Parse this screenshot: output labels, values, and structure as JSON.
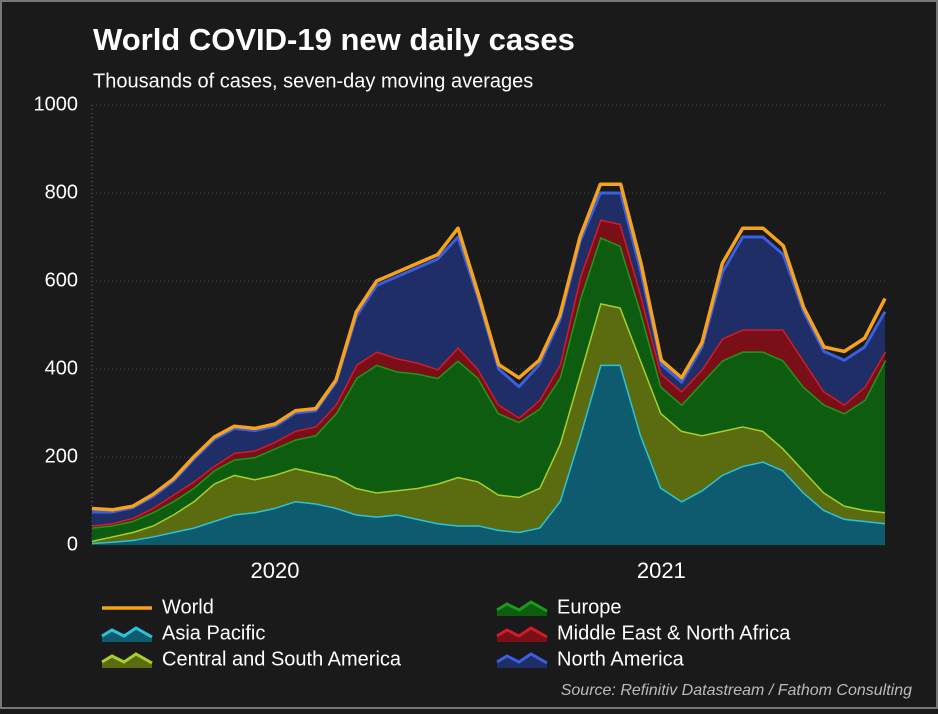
{
  "chart_data": {
    "type": "area",
    "stacked": true,
    "title": "World COVID-19 new daily cases",
    "subtitle": "Thousands of cases, seven-day moving averages",
    "source": "Source: Refinitiv Datastream / Fathom Consulting",
    "categories": [
      null,
      null,
      null,
      null,
      null,
      null,
      null,
      null,
      null,
      "2020",
      null,
      null,
      null,
      null,
      null,
      null,
      null,
      null,
      null,
      null,
      null,
      null,
      null,
      null,
      null,
      null,
      null,
      null,
      "2021",
      null,
      null,
      null,
      null,
      null,
      null,
      null,
      null,
      null,
      null,
      null
    ],
    "ylim": [
      0,
      1000
    ],
    "yticks": [
      0,
      200,
      400,
      600,
      800,
      1000
    ],
    "grid": true,
    "series": [
      {
        "name": "World",
        "type": "line",
        "color": "#f7a21b",
        "values": [
          83,
          80,
          88,
          115,
          150,
          200,
          245,
          270,
          265,
          275,
          305,
          310,
          375,
          530,
          600,
          620,
          640,
          660,
          720,
          570,
          410,
          380,
          420,
          520,
          700,
          820,
          820,
          640,
          420,
          380,
          460,
          640,
          720,
          720,
          680,
          540,
          450,
          440,
          470,
          560
        ]
      },
      {
        "name": "Asia Pacific",
        "type": "area",
        "color": "#29c4d9",
        "fill": "#0e5a6e",
        "values": [
          5,
          8,
          12,
          20,
          30,
          40,
          55,
          70,
          75,
          85,
          100,
          95,
          85,
          70,
          65,
          70,
          60,
          50,
          45,
          45,
          35,
          30,
          40,
          100,
          250,
          410,
          410,
          250,
          130,
          100,
          125,
          160,
          180,
          190,
          170,
          120,
          80,
          60,
          55,
          50
        ]
      },
      {
        "name": "Central and South America",
        "type": "area",
        "color": "#a8cf2b",
        "fill": "#5a6b10",
        "values": [
          5,
          12,
          18,
          25,
          40,
          60,
          85,
          90,
          75,
          75,
          75,
          70,
          70,
          60,
          55,
          55,
          70,
          90,
          110,
          100,
          80,
          80,
          90,
          130,
          140,
          140,
          130,
          170,
          170,
          160,
          125,
          100,
          90,
          70,
          50,
          50,
          40,
          30,
          25,
          25
        ]
      },
      {
        "name": "Europe",
        "type": "area",
        "color": "#1a9a1c",
        "fill": "#0d5c0f",
        "values": [
          30,
          25,
          25,
          30,
          30,
          30,
          30,
          35,
          50,
          60,
          65,
          85,
          145,
          250,
          290,
          270,
          260,
          240,
          265,
          235,
          185,
          170,
          180,
          150,
          170,
          150,
          140,
          110,
          60,
          60,
          120,
          160,
          170,
          180,
          200,
          190,
          200,
          210,
          250,
          345
        ]
      },
      {
        "name": "Middle East & North Africa",
        "type": "area",
        "color": "#d11b28",
        "fill": "#7a0f17",
        "values": [
          5,
          5,
          7,
          10,
          15,
          15,
          10,
          15,
          15,
          15,
          20,
          20,
          20,
          30,
          30,
          30,
          25,
          20,
          30,
          20,
          20,
          10,
          20,
          30,
          50,
          40,
          50,
          40,
          30,
          30,
          30,
          50,
          50,
          50,
          70,
          60,
          30,
          20,
          30,
          20
        ]
      },
      {
        "name": "North America",
        "type": "area",
        "color": "#3a5fe0",
        "fill": "#1f2e66",
        "values": [
          30,
          25,
          23,
          25,
          30,
          50,
          60,
          55,
          45,
          35,
          40,
          35,
          50,
          110,
          150,
          185,
          215,
          250,
          250,
          160,
          80,
          70,
          80,
          100,
          80,
          60,
          70,
          50,
          20,
          20,
          50,
          150,
          210,
          210,
          170,
          110,
          90,
          100,
          90,
          90
        ]
      }
    ],
    "legend_order": [
      0,
      1,
      2,
      3,
      4,
      5
    ]
  }
}
